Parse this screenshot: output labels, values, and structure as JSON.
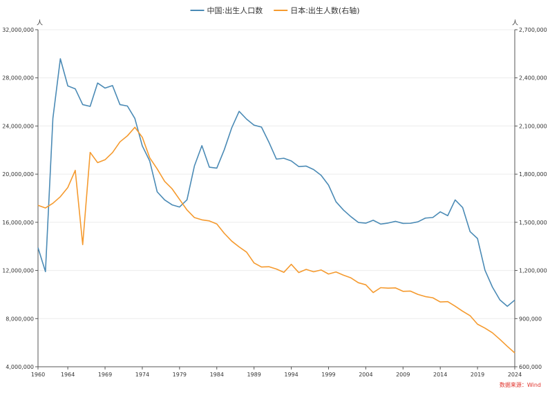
{
  "chart_data": {
    "type": "line",
    "x": [
      1960,
      1961,
      1962,
      1963,
      1964,
      1965,
      1966,
      1967,
      1968,
      1969,
      1970,
      1971,
      1972,
      1973,
      1974,
      1975,
      1976,
      1977,
      1978,
      1979,
      1980,
      1981,
      1982,
      1983,
      1984,
      1985,
      1986,
      1987,
      1988,
      1989,
      1990,
      1991,
      1992,
      1993,
      1994,
      1995,
      1996,
      1997,
      1998,
      1999,
      2000,
      2001,
      2002,
      2003,
      2004,
      2005,
      2006,
      2007,
      2008,
      2009,
      2010,
      2011,
      2012,
      2013,
      2014,
      2015,
      2016,
      2017,
      2018,
      2019,
      2020,
      2021,
      2022,
      2023,
      2024
    ],
    "x_ticks": [
      "1960",
      "1964",
      "1969",
      "1974",
      "1979",
      "1984",
      "1989",
      "1994",
      "1999",
      "2004",
      "2009",
      "2014",
      "2019",
      "2024"
    ],
    "series": [
      {
        "name": "中国:出生人口数",
        "axis": "left",
        "color": "#4a8ab5",
        "values": [
          13890000,
          11900000,
          24640000,
          29590000,
          27330000,
          27090000,
          25780000,
          25630000,
          27570000,
          27150000,
          27360000,
          25780000,
          25660000,
          24630000,
          22350000,
          21090000,
          18530000,
          17860000,
          17450000,
          17270000,
          17870000,
          20690000,
          22370000,
          20580000,
          20500000,
          22020000,
          23840000,
          25220000,
          24570000,
          24070000,
          23910000,
          22650000,
          21250000,
          21320000,
          21100000,
          20630000,
          20670000,
          20380000,
          19910000,
          19090000,
          17710000,
          17020000,
          16470000,
          15990000,
          15930000,
          16170000,
          15850000,
          15940000,
          16080000,
          15910000,
          15920000,
          16040000,
          16350000,
          16400000,
          16870000,
          16550000,
          17860000,
          17230000,
          15230000,
          14650000,
          12020000,
          10620000,
          9560000,
          9020000,
          9540000
        ]
      },
      {
        "name": "日本:出生人数(右轴)",
        "axis": "right",
        "color": "#f59a2e",
        "values": [
          1606041,
          1589372,
          1618616,
          1659521,
          1716761,
          1823697,
          1360974,
          1935647,
          1871839,
          1889815,
          1934239,
          2000973,
          2038682,
          2091983,
          2029989,
          1901440,
          1832617,
          1755100,
          1708643,
          1642580,
          1576889,
          1529455,
          1515392,
          1508687,
          1489780,
          1431577,
          1382946,
          1346658,
          1314006,
          1246802,
          1221585,
          1223245,
          1208989,
          1188282,
          1238328,
          1187064,
          1206555,
          1191665,
          1203147,
          1177669,
          1190547,
          1170662,
          1153855,
          1123610,
          1110721,
          1062530,
          1092674,
          1089818,
          1091156,
          1070036,
          1071304,
          1050806,
          1037232,
          1029817,
          1003609,
          1005721,
          977242,
          946146,
          918400,
          865239,
          840835,
          811622,
          770759,
          727288,
          686061
        ]
      }
    ],
    "left_axis": {
      "ylim": [
        4000000,
        32000000
      ],
      "ticks": [
        "4,000,000",
        "8,000,000",
        "12,000,000",
        "16,000,000",
        "20,000,000",
        "24,000,000",
        "28,000,000",
        "32,000,000"
      ],
      "unit": "人"
    },
    "right_axis": {
      "ylim": [
        600000,
        2700000
      ],
      "ticks": [
        "600,000",
        "900,000",
        "1,200,000",
        "1,500,000",
        "1,800,000",
        "2,100,000",
        "2,400,000",
        "2,700,000"
      ],
      "unit": "人"
    },
    "legend_position": "top-center",
    "grid": true,
    "source": "数据来源：Wind"
  }
}
